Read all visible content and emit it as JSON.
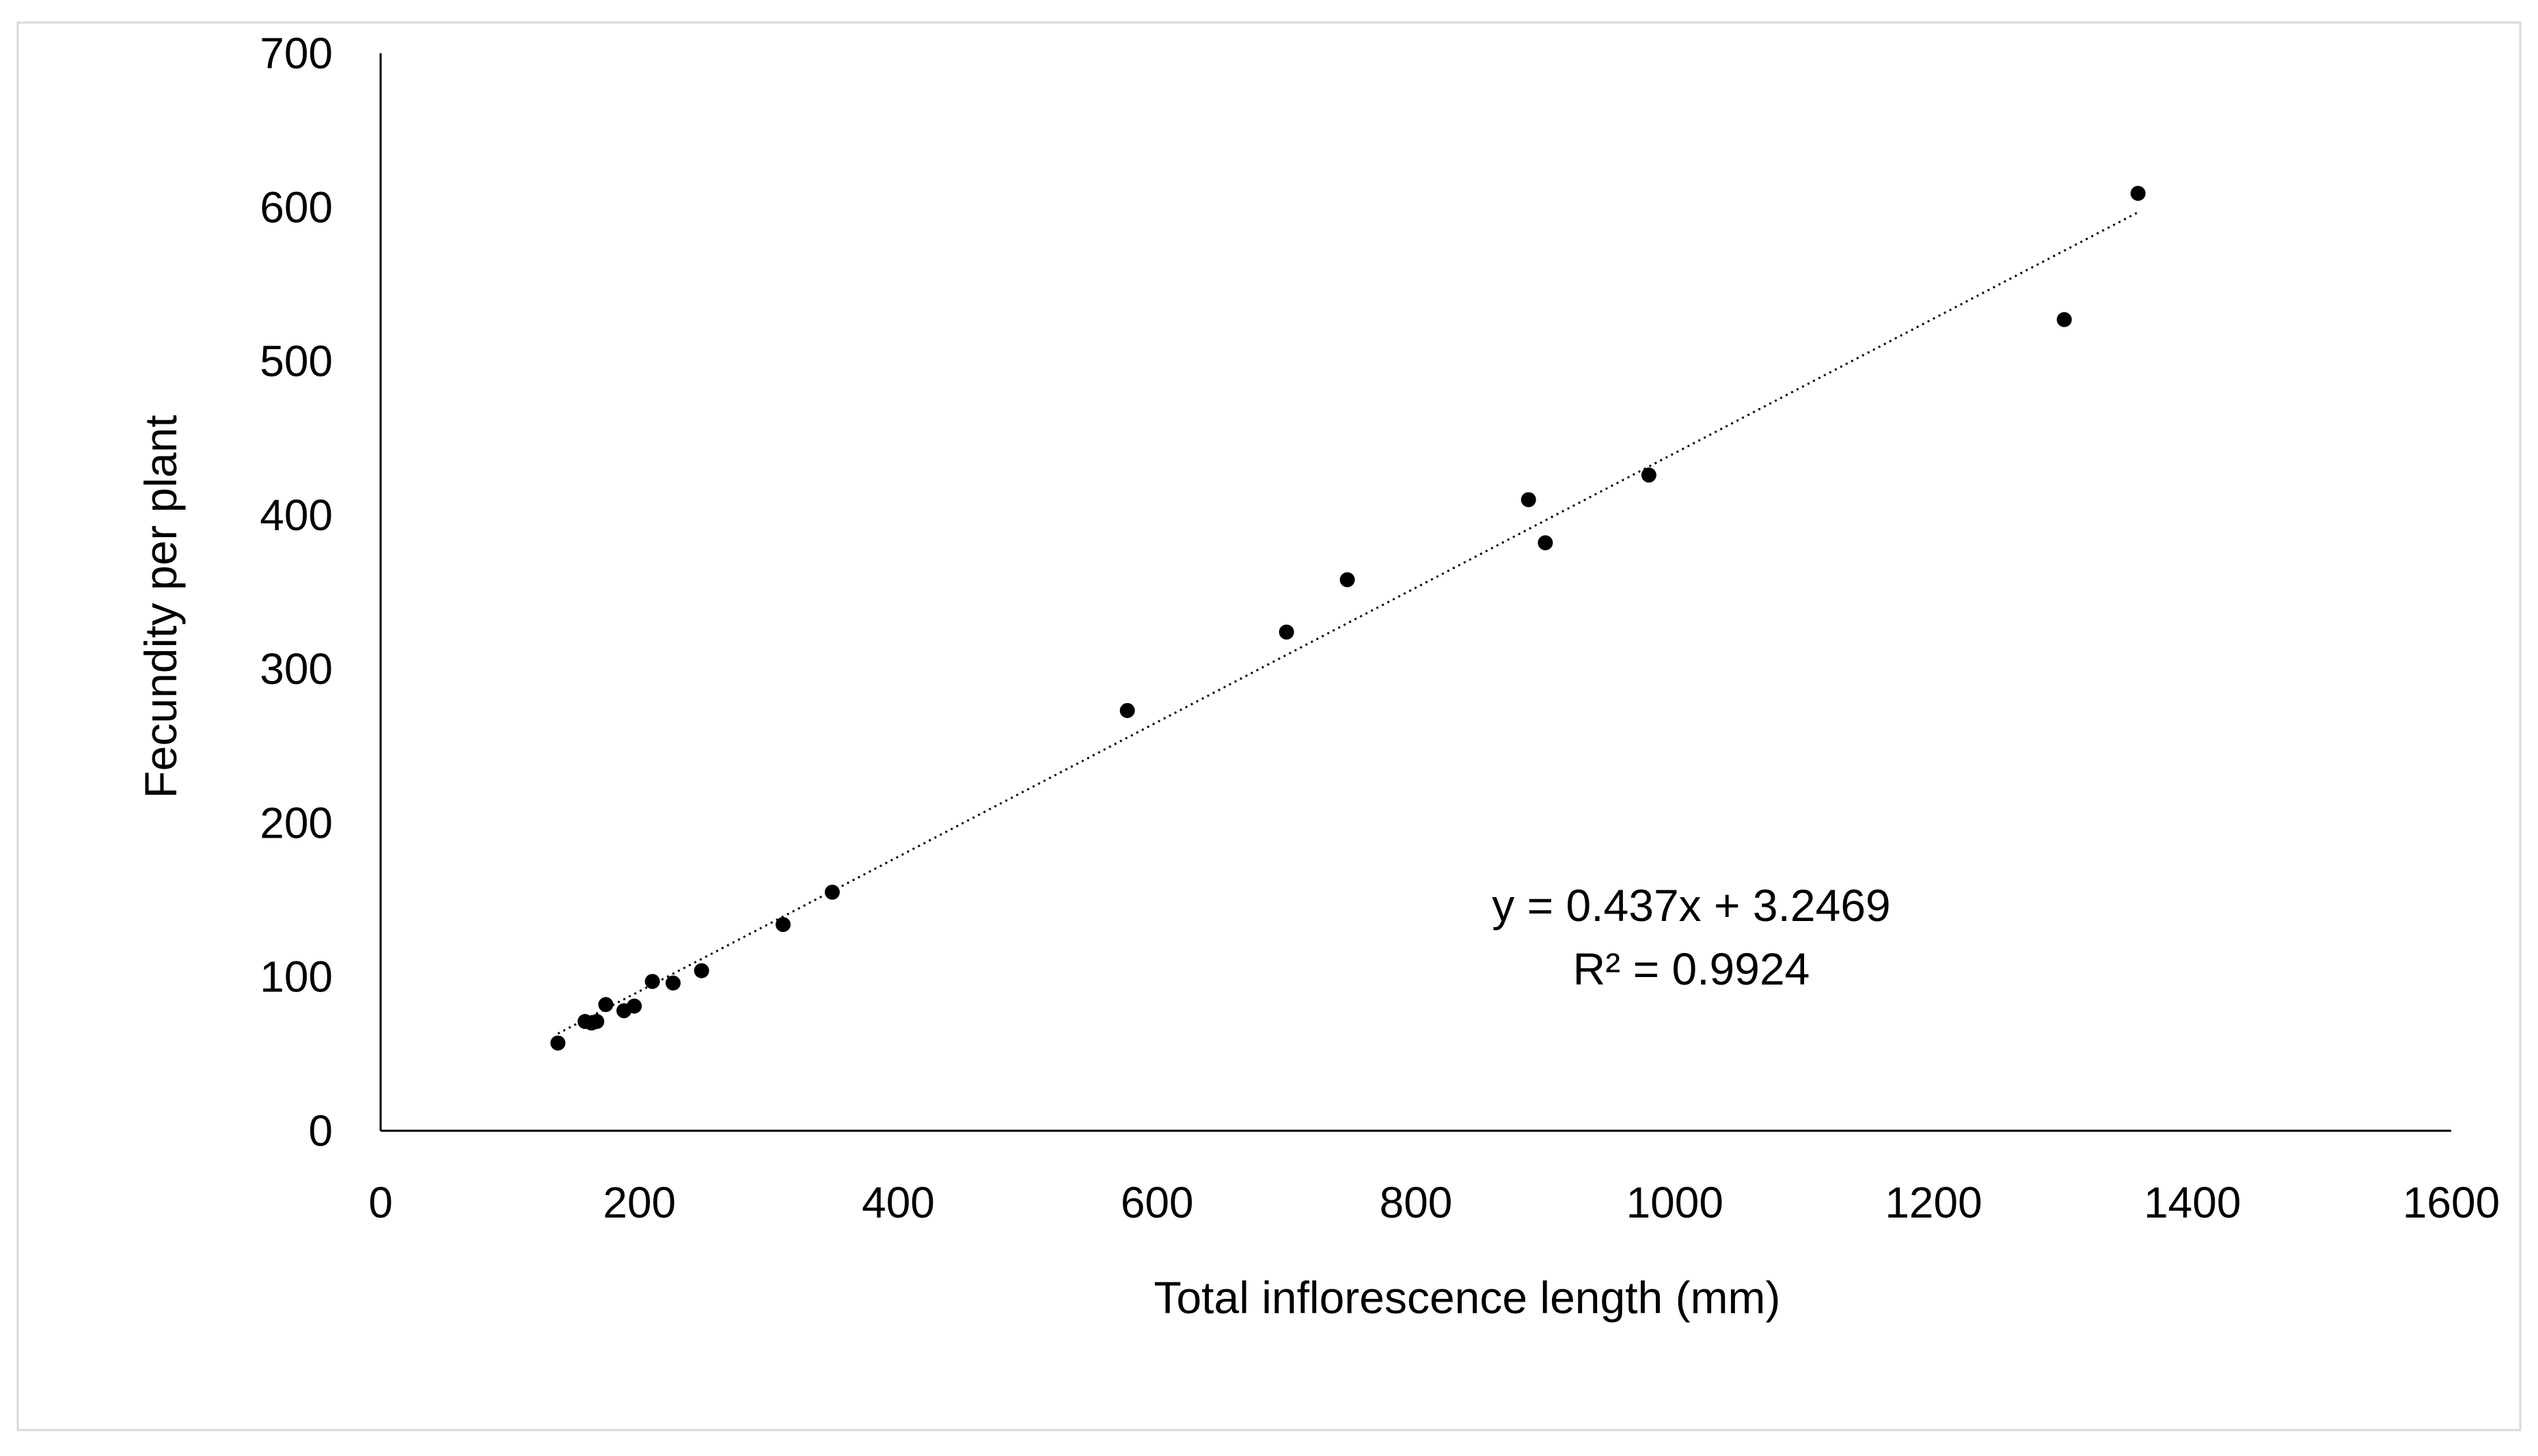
{
  "chart_data": {
    "type": "scatter",
    "title": "",
    "xlabel": "Total inflorescence length (mm)",
    "ylabel": "Fecundity per plant",
    "xlim": [
      0,
      1600
    ],
    "ylim": [
      0,
      700
    ],
    "xticks": [
      0,
      200,
      400,
      600,
      800,
      1000,
      1200,
      1400,
      1600
    ],
    "yticks": [
      0,
      100,
      200,
      300,
      400,
      500,
      600,
      700
    ],
    "xtick_labels": [
      "0",
      "200",
      "400",
      "600",
      "800",
      "1000",
      "1200",
      "1400",
      "1600"
    ],
    "ytick_labels": [
      "0",
      "100",
      "200",
      "300",
      "400",
      "500",
      "600",
      "700"
    ],
    "grid": false,
    "legend": "none",
    "series": [
      {
        "name": "Fecundity",
        "marker": "circle",
        "color": "#000000",
        "points": [
          {
            "x": 137,
            "y": 57
          },
          {
            "x": 158,
            "y": 71
          },
          {
            "x": 163,
            "y": 70
          },
          {
            "x": 167,
            "y": 71
          },
          {
            "x": 174,
            "y": 82
          },
          {
            "x": 188,
            "y": 78
          },
          {
            "x": 196,
            "y": 81
          },
          {
            "x": 210,
            "y": 97
          },
          {
            "x": 226,
            "y": 96
          },
          {
            "x": 248,
            "y": 104
          },
          {
            "x": 311,
            "y": 134
          },
          {
            "x": 349,
            "y": 155
          },
          {
            "x": 577,
            "y": 273
          },
          {
            "x": 700,
            "y": 324
          },
          {
            "x": 747,
            "y": 358
          },
          {
            "x": 887,
            "y": 410
          },
          {
            "x": 900,
            "y": 382
          },
          {
            "x": 980,
            "y": 426
          },
          {
            "x": 1301,
            "y": 527
          },
          {
            "x": 1358,
            "y": 609
          }
        ]
      }
    ],
    "trendline": {
      "type": "linear",
      "style": "dotted",
      "slope": 0.437,
      "intercept": 3.2469,
      "x_start": 137,
      "x_end": 1358,
      "equation": "y = 0.437x + 3.2469",
      "r_squared": "R² = 0.9924"
    }
  },
  "colors": {
    "background": "#ffffff",
    "frame": "#d9d9d9",
    "axis": "#000000",
    "marker": "#000000"
  }
}
